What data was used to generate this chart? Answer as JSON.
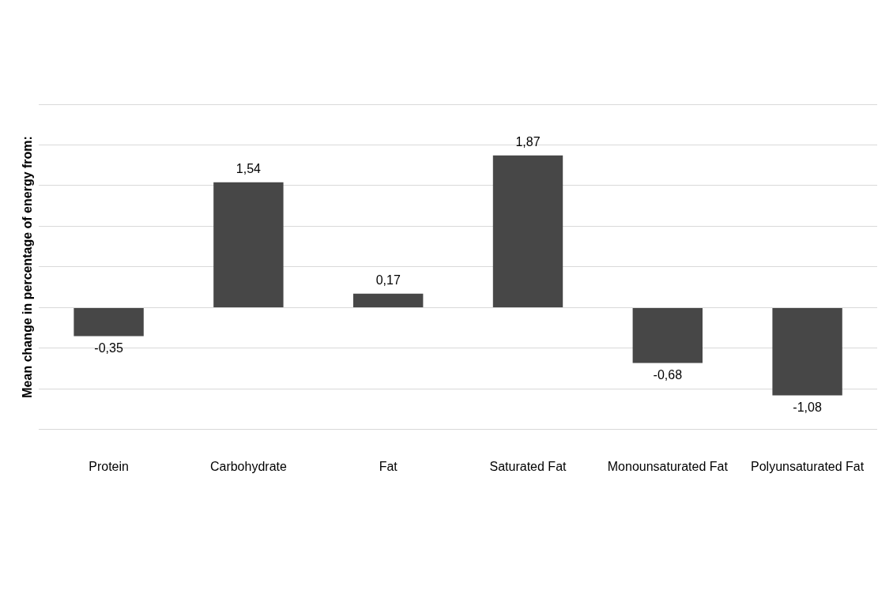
{
  "chart_data": {
    "type": "bar",
    "ylabel": "Mean change in percentage of energy from:",
    "categories": [
      "Protein",
      "Carbohydrate",
      "Fat",
      "Saturated Fat",
      "Monounsaturated Fat",
      "Polyunsaturated Fat"
    ],
    "values": [
      -0.35,
      1.54,
      0.17,
      1.87,
      -0.68,
      -1.08
    ],
    "value_labels": [
      "-0,35",
      "1,54",
      "0,17",
      "1,87",
      "-0,68",
      "-1,08"
    ],
    "color": "#474747",
    "ylim": [
      -1.5,
      2.5
    ],
    "yticks": [
      {
        "value": -1.5,
        "label": null
      },
      {
        "value": -1,
        "label": null
      },
      {
        "value": -0.5,
        "label": null
      },
      {
        "value": 0,
        "label": null
      },
      {
        "value": 0.5,
        "label": null
      },
      {
        "value": 1,
        "label": null
      },
      {
        "value": 1.5,
        "label": null
      },
      {
        "value": 2,
        "label": null
      },
      {
        "value": 2.5,
        "label": null
      }
    ],
    "grid": "y",
    "tick_labels": "x",
    "legend": false
  }
}
